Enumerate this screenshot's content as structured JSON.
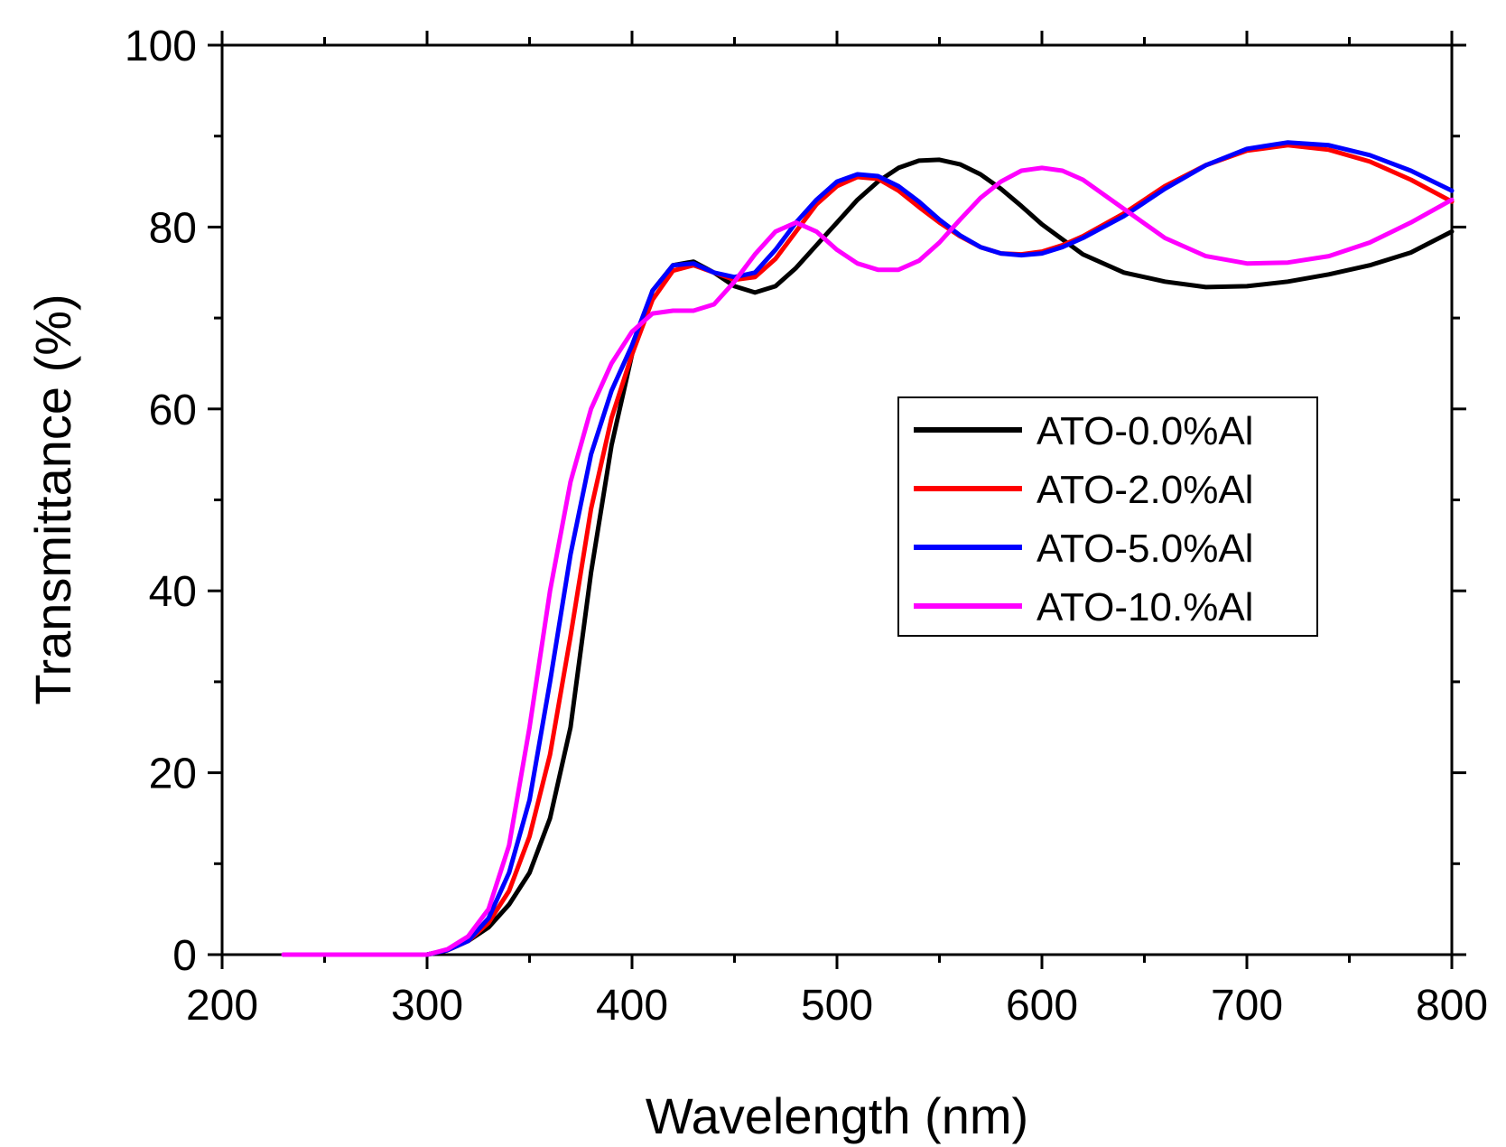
{
  "chart_data": {
    "type": "line",
    "title": "",
    "xlabel": "Wavelength (nm)",
    "ylabel": "Transmittance (%)",
    "xlim": [
      200,
      800
    ],
    "ylim": [
      0,
      100
    ],
    "xticks": [
      200,
      300,
      400,
      500,
      600,
      700,
      800
    ],
    "yticks": [
      0,
      20,
      40,
      60,
      80,
      100
    ],
    "grid": false,
    "legend_position": "center-right",
    "series": [
      {
        "name": "ATO-0.0%Al",
        "color": "#000000",
        "x": [
          230,
          300,
          310,
          320,
          330,
          340,
          350,
          360,
          370,
          380,
          390,
          400,
          410,
          420,
          430,
          440,
          450,
          460,
          470,
          480,
          490,
          500,
          510,
          520,
          530,
          540,
          550,
          560,
          570,
          580,
          590,
          600,
          620,
          640,
          660,
          680,
          700,
          720,
          740,
          760,
          780,
          800
        ],
        "y": [
          0,
          0,
          0.5,
          1.5,
          3,
          5.5,
          9,
          15,
          25,
          42,
          56,
          66,
          73,
          75.8,
          76.2,
          75,
          73.5,
          72.8,
          73.5,
          75.5,
          78,
          80.5,
          83,
          85,
          86.5,
          87.3,
          87.4,
          86.9,
          85.8,
          84.2,
          82.3,
          80.3,
          77,
          75,
          74,
          73.4,
          73.5,
          74,
          74.8,
          75.8,
          77.2,
          79.5
        ]
      },
      {
        "name": "ATO-2.0%Al",
        "color": "#ff0000",
        "x": [
          230,
          300,
          310,
          320,
          330,
          340,
          350,
          360,
          370,
          380,
          390,
          400,
          410,
          420,
          430,
          440,
          450,
          460,
          470,
          480,
          490,
          500,
          510,
          520,
          530,
          540,
          550,
          560,
          570,
          580,
          590,
          600,
          610,
          620,
          640,
          660,
          680,
          700,
          720,
          740,
          760,
          780,
          800
        ],
        "y": [
          0,
          0,
          0.5,
          1.5,
          3.5,
          7,
          13,
          22,
          35,
          49,
          59,
          66,
          72,
          75.2,
          75.8,
          75,
          74.2,
          74.5,
          76.5,
          79.5,
          82.5,
          84.5,
          85.5,
          85.3,
          84,
          82.2,
          80.5,
          79,
          77.8,
          77.1,
          77,
          77.3,
          78,
          79,
          81.5,
          84.5,
          86.8,
          88.4,
          89,
          88.5,
          87.2,
          85.2,
          82.8
        ]
      },
      {
        "name": "ATO-5.0%Al",
        "color": "#0000ff",
        "x": [
          230,
          300,
          310,
          320,
          330,
          340,
          350,
          360,
          370,
          380,
          390,
          400,
          410,
          420,
          430,
          440,
          450,
          460,
          470,
          480,
          490,
          500,
          510,
          520,
          530,
          540,
          550,
          560,
          570,
          580,
          590,
          600,
          610,
          620,
          640,
          660,
          680,
          700,
          720,
          740,
          760,
          780,
          800
        ],
        "y": [
          0,
          0,
          0.5,
          1.5,
          4,
          9,
          17,
          30,
          44,
          55,
          62,
          67,
          73,
          75.8,
          76,
          75,
          74.5,
          75,
          77.5,
          80.5,
          83,
          85,
          85.8,
          85.6,
          84.5,
          82.8,
          80.8,
          79.1,
          77.8,
          77.1,
          76.9,
          77.1,
          77.8,
          78.8,
          81.2,
          84.2,
          86.8,
          88.6,
          89.3,
          89,
          87.9,
          86.2,
          84
        ]
      },
      {
        "name": "ATO-10.%Al",
        "color": "#ff00ff",
        "x": [
          230,
          300,
          310,
          320,
          330,
          340,
          350,
          360,
          370,
          380,
          390,
          400,
          410,
          420,
          430,
          440,
          450,
          460,
          470,
          480,
          490,
          500,
          510,
          520,
          530,
          540,
          550,
          560,
          570,
          580,
          590,
          600,
          610,
          620,
          640,
          660,
          680,
          700,
          720,
          740,
          760,
          780,
          800
        ],
        "y": [
          0,
          0,
          0.6,
          2,
          5,
          12,
          25,
          40,
          52,
          60,
          65,
          68.5,
          70.5,
          70.8,
          70.8,
          71.5,
          74,
          77,
          79.5,
          80.5,
          79.5,
          77.5,
          76,
          75.3,
          75.3,
          76.3,
          78.3,
          80.8,
          83.2,
          85,
          86.2,
          86.5,
          86.2,
          85.2,
          82,
          78.8,
          76.8,
          76,
          76.1,
          76.8,
          78.3,
          80.5,
          83
        ]
      }
    ]
  }
}
